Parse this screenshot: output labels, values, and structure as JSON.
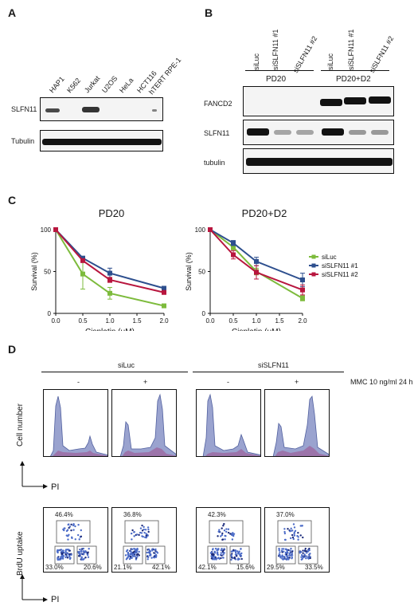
{
  "panels": {
    "a": "A",
    "b": "B",
    "c": "C",
    "d": "D"
  },
  "panel_a": {
    "lanes": [
      "HAP1",
      "K562",
      "Jurkat",
      "U2OS",
      "HeLa",
      "HCT116",
      "hTERT RPE-1"
    ],
    "rows": [
      "SLFN11",
      "Tubulin"
    ]
  },
  "panel_b": {
    "lanes": [
      "siLuc",
      "siSLFN11 #1",
      "siSLFN11 #2",
      "siLuc",
      "siSLFN11 #1",
      "siSLFN11 #2"
    ],
    "groups": [
      "PD20",
      "PD20+D2"
    ],
    "rows": [
      "FANCD2",
      "SLFN11",
      "tubulin"
    ]
  },
  "chart_data": [
    {
      "type": "line",
      "title": "PD20",
      "xlabel": "Cisplatin (μM)",
      "ylabel": "Survival (%)",
      "x": [
        0.0,
        0.5,
        1.0,
        2.0
      ],
      "xticks": [
        "0.0",
        "0.5",
        "1.0",
        "1.5",
        "2.0"
      ],
      "yticks": [
        "0",
        "50",
        "100"
      ],
      "xlim": [
        0,
        2
      ],
      "ylim": [
        0,
        100
      ],
      "series": [
        {
          "name": "siLuc",
          "values": [
            100,
            47,
            24,
            9
          ],
          "err": [
            0,
            18,
            7,
            1
          ],
          "color": "#7dbb3c"
        },
        {
          "name": "siSLFN11 #1",
          "values": [
            100,
            66,
            48,
            30
          ],
          "err": [
            0,
            2,
            6,
            2
          ],
          "color": "#2d4f8e"
        },
        {
          "name": "siSLFN11 #2",
          "values": [
            100,
            63,
            40,
            25
          ],
          "err": [
            0,
            2,
            3,
            1
          ],
          "color": "#b8163e"
        }
      ]
    },
    {
      "type": "line",
      "title": "PD20+D2",
      "xlabel": "Cisplatin (μM)",
      "ylabel": "Survival (%)",
      "x": [
        0.0,
        0.5,
        1.0,
        2.0
      ],
      "xticks": [
        "0.0",
        "0.5",
        "1.0",
        "1.5",
        "2.0"
      ],
      "yticks": [
        "0",
        "50",
        "100"
      ],
      "xlim": [
        0,
        2
      ],
      "ylim": [
        0,
        100
      ],
      "legend": "right",
      "series": [
        {
          "name": "siLuc",
          "values": [
            100,
            79,
            50,
            18
          ],
          "err": [
            0,
            3,
            4,
            3
          ],
          "color": "#7dbb3c"
        },
        {
          "name": "siSLFN11 #1",
          "values": [
            100,
            84,
            62,
            40
          ],
          "err": [
            0,
            3,
            5,
            8
          ],
          "color": "#2d4f8e"
        },
        {
          "name": "siSLFN11 #2",
          "values": [
            100,
            70,
            49,
            28
          ],
          "err": [
            0,
            5,
            8,
            6
          ],
          "color": "#b8163e"
        }
      ]
    }
  ],
  "panel_d": {
    "groups": [
      "siLuc",
      "siSLFN11"
    ],
    "treatment": "MMC 10 ng/ml 24 h",
    "conditions": [
      "-",
      "+",
      "-",
      "+"
    ],
    "ylabel_top": "Cell number",
    "ylabel_bottom": "BrdU uptake",
    "xlabel": "PI",
    "brdu": [
      {
        "s": "46.4%",
        "g1": "33.0%",
        "g2": "20.6%"
      },
      {
        "s": "36.8%",
        "g1": "21.1%",
        "g2": "42.1%"
      },
      {
        "s": "42.3%",
        "g1": "42.1%",
        "g2": "15.6%"
      },
      {
        "s": "37.0%",
        "g1": "29.5%",
        "g2": "33.5%"
      }
    ]
  }
}
